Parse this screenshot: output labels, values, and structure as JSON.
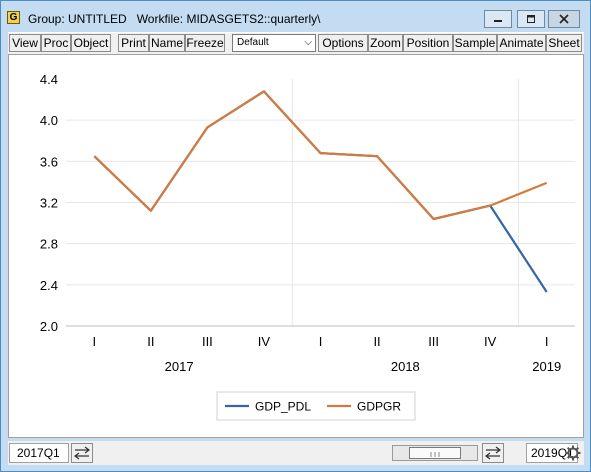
{
  "window": {
    "icon_label": "G",
    "title": "Group: UNTITLED   Workfile: MIDASGETS2::quarterly\\"
  },
  "toolbar": {
    "buttons": [
      "View",
      "Proc",
      "Object",
      "Print",
      "Name",
      "Freeze",
      "Options",
      "Zoom",
      "Position",
      "Sample",
      "Animate",
      "Sheet"
    ],
    "template_select": "Default"
  },
  "chart_data": {
    "type": "line",
    "categories": [
      "I",
      "II",
      "III",
      "IV",
      "I",
      "II",
      "III",
      "IV",
      "I"
    ],
    "years": [
      {
        "label": "2017",
        "start": 0,
        "end": 3
      },
      {
        "label": "2018",
        "start": 4,
        "end": 7
      },
      {
        "label": "2019",
        "start": 8,
        "end": 8
      }
    ],
    "ylim": [
      2.0,
      4.4
    ],
    "yticks": [
      "4.4",
      "4.0",
      "3.6",
      "3.2",
      "2.8",
      "2.4",
      "2.0"
    ],
    "grid": true,
    "legend_position": "bottom",
    "series": [
      {
        "name": "GDP_PDL",
        "color": "#3465a8",
        "values": [
          3.65,
          3.12,
          3.93,
          4.28,
          3.68,
          3.65,
          3.04,
          3.17,
          2.33
        ]
      },
      {
        "name": "GDPGR",
        "color": "#d37b3e",
        "values": [
          3.65,
          3.12,
          3.93,
          4.28,
          3.68,
          3.65,
          3.04,
          3.17,
          3.39
        ]
      }
    ]
  },
  "status": {
    "start": "2017Q1",
    "end": "2019Q1"
  }
}
